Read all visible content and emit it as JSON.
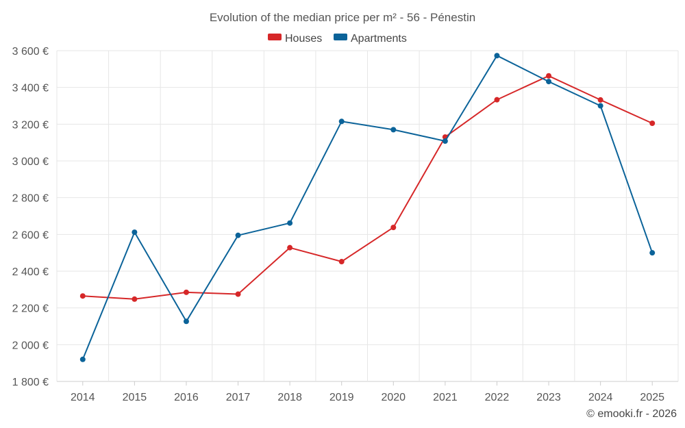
{
  "chart_data": {
    "type": "line",
    "title": "Evolution of the median price per m² - 56 - Pénestin",
    "categories": [
      "2014",
      "2015",
      "2016",
      "2017",
      "2018",
      "2019",
      "2020",
      "2021",
      "2022",
      "2023",
      "2024",
      "2025"
    ],
    "series": [
      {
        "name": "Houses",
        "color": "#d62728",
        "values": [
          2265,
          2248,
          2285,
          2275,
          2528,
          2452,
          2638,
          3130,
          3333,
          3463,
          3332,
          3205
        ]
      },
      {
        "name": "Apartments",
        "color": "#0b6399",
        "values": [
          1920,
          2612,
          2127,
          2595,
          2662,
          3215,
          3170,
          3108,
          3573,
          3432,
          3300,
          2500
        ]
      }
    ],
    "ylim": [
      1800,
      3600
    ],
    "yticks": [
      1800,
      2000,
      2200,
      2400,
      2600,
      2800,
      3000,
      3200,
      3400,
      3600
    ],
    "ytick_labels": [
      "1 800 €",
      "2 000 €",
      "2 200 €",
      "2 400 €",
      "2 600 €",
      "2 800 €",
      "3 000 €",
      "3 200 €",
      "3 400 €",
      "3 600 €"
    ],
    "xlabel": "",
    "ylabel": "",
    "grid": true,
    "legend": "top-center"
  },
  "credit": "© emooki.fr - 2026"
}
